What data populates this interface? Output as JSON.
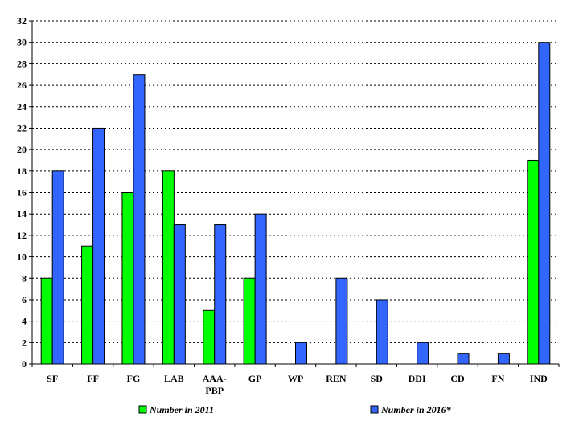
{
  "chart_data": {
    "type": "bar",
    "categories": [
      "SF",
      "FF",
      "FG",
      "LAB",
      "AAA-PBP",
      "GP",
      "WP",
      "REN",
      "SD",
      "DDI",
      "CD",
      "FN",
      "IND"
    ],
    "category_lines": [
      [
        "SF"
      ],
      [
        "FF"
      ],
      [
        "FG"
      ],
      [
        "LAB"
      ],
      [
        "AAA-",
        "PBP"
      ],
      [
        "GP"
      ],
      [
        "WP"
      ],
      [
        "REN"
      ],
      [
        "SD"
      ],
      [
        "DDI"
      ],
      [
        "CD"
      ],
      [
        "FN"
      ],
      [
        "IND"
      ]
    ],
    "series": [
      {
        "name": "Number in 2011",
        "color": "#00ff00",
        "values": [
          8,
          11,
          16,
          18,
          5,
          8,
          0,
          0,
          0,
          0,
          0,
          0,
          19
        ]
      },
      {
        "name": "Number in 2016*",
        "color": "#3366ff",
        "values": [
          18,
          22,
          27,
          13,
          13,
          14,
          2,
          8,
          6,
          2,
          1,
          1,
          30
        ]
      }
    ],
    "ylim": [
      0,
      32
    ],
    "yticks": [
      0,
      2,
      4,
      6,
      8,
      10,
      12,
      14,
      16,
      18,
      20,
      22,
      24,
      26,
      28,
      30,
      32
    ],
    "grid": true,
    "grid_style": "dashed",
    "legend_position": "bottom"
  }
}
